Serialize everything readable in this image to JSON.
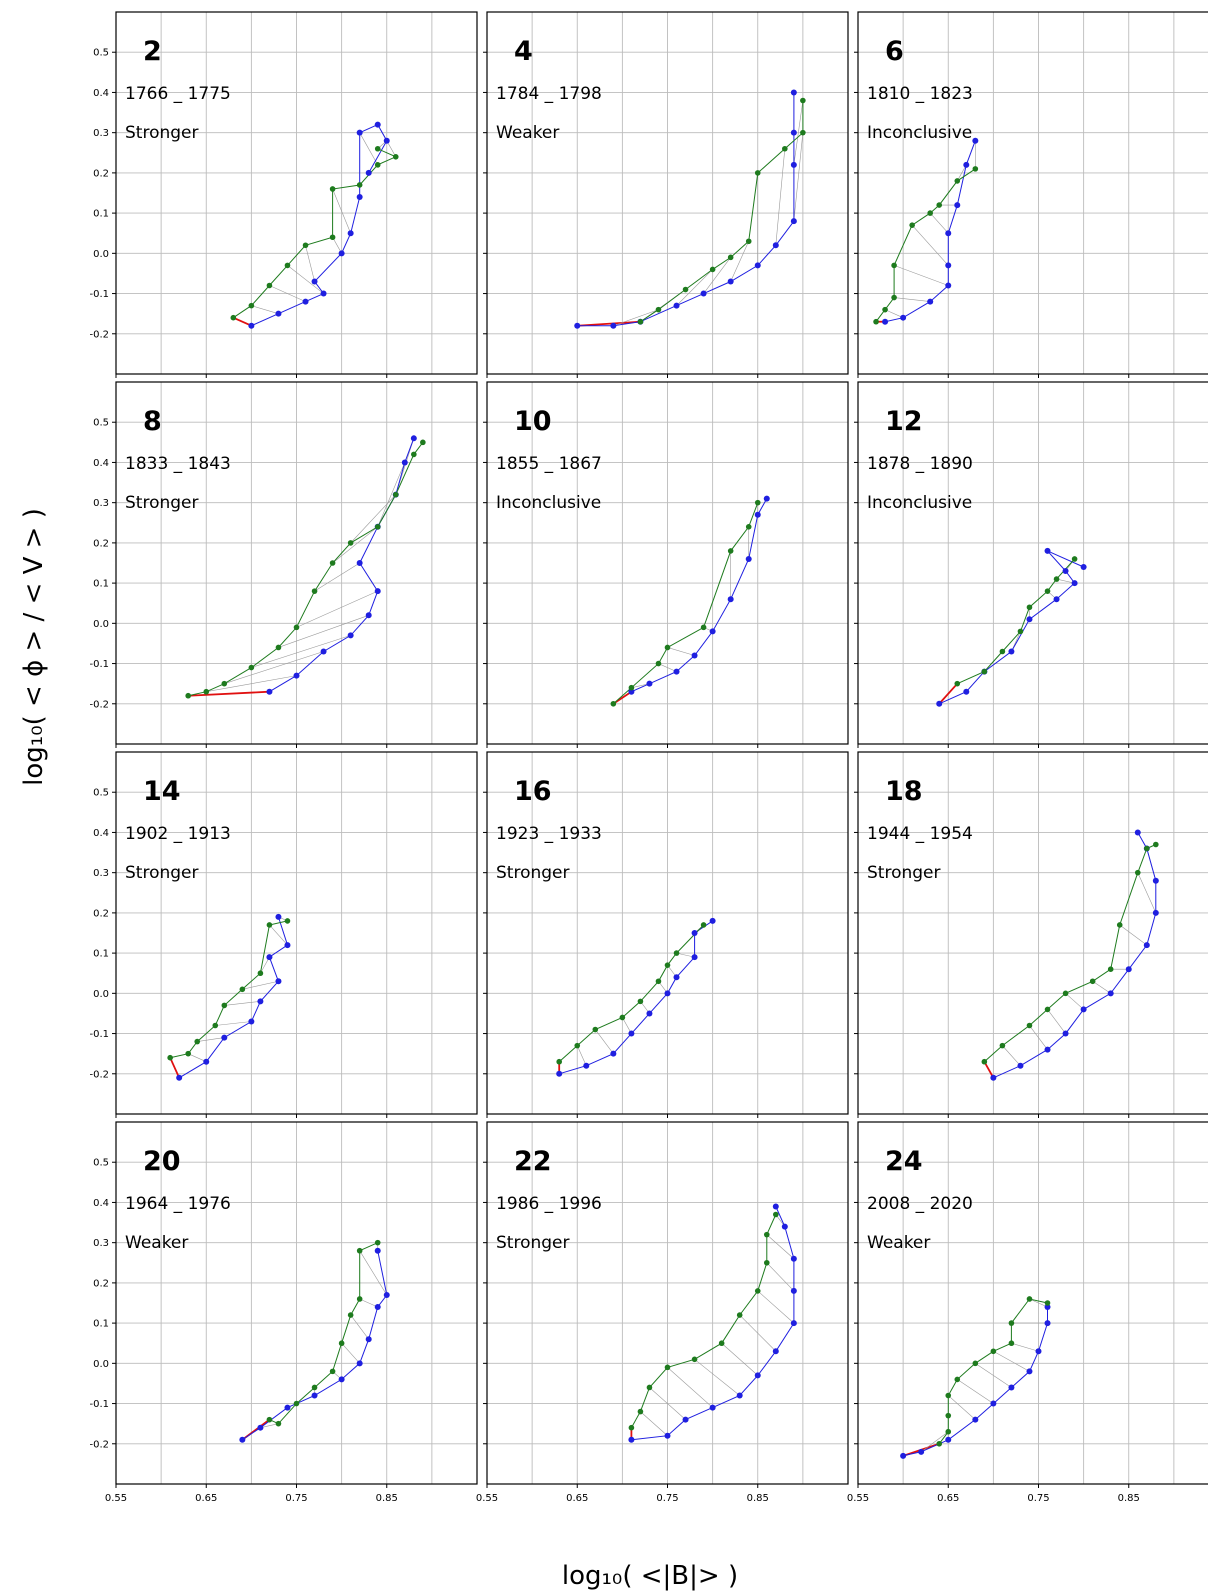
{
  "chart_data": {
    "type": "scatter",
    "xlabel": "log₁₀( <|B|> )",
    "ylabel": "log₁₀( < ϕ > / < V > )",
    "xlim": [
      0.55,
      0.95
    ],
    "ylim": [
      -0.3,
      0.6
    ],
    "x_ticks": [
      "0.55",
      "0.65",
      "0.75",
      "0.85"
    ],
    "y_ticks": [
      "-0.2",
      "-0.1",
      "0.0",
      "0.1",
      "0.2",
      "0.3",
      "0.4",
      "0.5"
    ],
    "grid": true,
    "colors": {
      "blue_series": "#1f1fe0",
      "green_series": "#1e7b1e",
      "connector": "#9a9a9a",
      "min_connector": "#e01010"
    },
    "panels": [
      {
        "cycle": "2",
        "years": "1766 _ 1775",
        "result": "Stronger",
        "green": [
          [
            0.68,
            -0.16
          ],
          [
            0.7,
            -0.13
          ],
          [
            0.72,
            -0.08
          ],
          [
            0.74,
            -0.03
          ],
          [
            0.76,
            0.02
          ],
          [
            0.79,
            0.04
          ],
          [
            0.79,
            0.16
          ],
          [
            0.82,
            0.17
          ],
          [
            0.84,
            0.22
          ],
          [
            0.86,
            0.24
          ],
          [
            0.84,
            0.26
          ]
        ],
        "blue": [
          [
            0.7,
            -0.18
          ],
          [
            0.73,
            -0.15
          ],
          [
            0.76,
            -0.12
          ],
          [
            0.78,
            -0.1
          ],
          [
            0.77,
            -0.07
          ],
          [
            0.8,
            0.0
          ],
          [
            0.81,
            0.05
          ],
          [
            0.82,
            0.14
          ],
          [
            0.82,
            0.3
          ],
          [
            0.84,
            0.32
          ],
          [
            0.85,
            0.28
          ],
          [
            0.83,
            0.2
          ]
        ]
      },
      {
        "cycle": "4",
        "years": "1784 _ 1798",
        "result": "Weaker",
        "green": [
          [
            0.72,
            -0.17
          ],
          [
            0.74,
            -0.14
          ],
          [
            0.77,
            -0.09
          ],
          [
            0.8,
            -0.04
          ],
          [
            0.82,
            -0.01
          ],
          [
            0.84,
            0.03
          ],
          [
            0.85,
            0.2
          ],
          [
            0.88,
            0.26
          ],
          [
            0.9,
            0.3
          ],
          [
            0.9,
            0.38
          ]
        ],
        "blue": [
          [
            0.65,
            -0.18
          ],
          [
            0.69,
            -0.18
          ],
          [
            0.72,
            -0.17
          ],
          [
            0.76,
            -0.13
          ],
          [
            0.79,
            -0.1
          ],
          [
            0.82,
            -0.07
          ],
          [
            0.85,
            -0.03
          ],
          [
            0.87,
            0.02
          ],
          [
            0.89,
            0.08
          ],
          [
            0.89,
            0.22
          ],
          [
            0.89,
            0.3
          ],
          [
            0.89,
            0.4
          ]
        ]
      },
      {
        "cycle": "6",
        "years": "1810 _ 1823",
        "result": "Inconclusive",
        "green": [
          [
            0.57,
            -0.17
          ],
          [
            0.58,
            -0.14
          ],
          [
            0.59,
            -0.11
          ],
          [
            0.59,
            -0.03
          ],
          [
            0.61,
            0.07
          ],
          [
            0.63,
            0.1
          ],
          [
            0.64,
            0.12
          ],
          [
            0.66,
            0.18
          ],
          [
            0.68,
            0.21
          ]
        ],
        "blue": [
          [
            0.58,
            -0.17
          ],
          [
            0.6,
            -0.16
          ],
          [
            0.63,
            -0.12
          ],
          [
            0.65,
            -0.08
          ],
          [
            0.65,
            -0.03
          ],
          [
            0.65,
            0.05
          ],
          [
            0.66,
            0.12
          ],
          [
            0.67,
            0.22
          ],
          [
            0.68,
            0.28
          ]
        ]
      },
      {
        "cycle": "8",
        "years": "1833 _ 1843",
        "result": "Stronger",
        "green": [
          [
            0.63,
            -0.18
          ],
          [
            0.65,
            -0.17
          ],
          [
            0.67,
            -0.15
          ],
          [
            0.7,
            -0.11
          ],
          [
            0.73,
            -0.06
          ],
          [
            0.75,
            -0.01
          ],
          [
            0.77,
            0.08
          ],
          [
            0.79,
            0.15
          ],
          [
            0.81,
            0.2
          ],
          [
            0.84,
            0.24
          ],
          [
            0.86,
            0.32
          ],
          [
            0.88,
            0.42
          ],
          [
            0.89,
            0.45
          ]
        ],
        "blue": [
          [
            0.72,
            -0.17
          ],
          [
            0.75,
            -0.13
          ],
          [
            0.78,
            -0.07
          ],
          [
            0.81,
            -0.03
          ],
          [
            0.83,
            0.02
          ],
          [
            0.84,
            0.08
          ],
          [
            0.82,
            0.15
          ],
          [
            0.84,
            0.24
          ],
          [
            0.86,
            0.32
          ],
          [
            0.87,
            0.4
          ],
          [
            0.88,
            0.46
          ]
        ]
      },
      {
        "cycle": "10",
        "years": "1855 _ 1867",
        "result": "Inconclusive",
        "green": [
          [
            0.69,
            -0.2
          ],
          [
            0.71,
            -0.16
          ],
          [
            0.74,
            -0.1
          ],
          [
            0.75,
            -0.06
          ],
          [
            0.79,
            -0.01
          ],
          [
            0.82,
            0.18
          ],
          [
            0.84,
            0.24
          ],
          [
            0.85,
            0.3
          ]
        ],
        "blue": [
          [
            0.71,
            -0.17
          ],
          [
            0.73,
            -0.15
          ],
          [
            0.76,
            -0.12
          ],
          [
            0.78,
            -0.08
          ],
          [
            0.8,
            -0.02
          ],
          [
            0.82,
            0.06
          ],
          [
            0.84,
            0.16
          ],
          [
            0.85,
            0.27
          ],
          [
            0.86,
            0.31
          ]
        ]
      },
      {
        "cycle": "12",
        "years": "1878 _ 1890",
        "result": "Inconclusive",
        "green": [
          [
            0.66,
            -0.15
          ],
          [
            0.69,
            -0.12
          ],
          [
            0.71,
            -0.07
          ],
          [
            0.73,
            -0.02
          ],
          [
            0.74,
            0.04
          ],
          [
            0.76,
            0.08
          ],
          [
            0.77,
            0.11
          ],
          [
            0.79,
            0.16
          ]
        ],
        "blue": [
          [
            0.64,
            -0.2
          ],
          [
            0.67,
            -0.17
          ],
          [
            0.69,
            -0.12
          ],
          [
            0.72,
            -0.07
          ],
          [
            0.74,
            0.01
          ],
          [
            0.77,
            0.06
          ],
          [
            0.79,
            0.1
          ],
          [
            0.78,
            0.13
          ],
          [
            0.76,
            0.18
          ],
          [
            0.8,
            0.14
          ]
        ]
      },
      {
        "cycle": "14",
        "years": "1902 _ 1913",
        "result": "Stronger",
        "green": [
          [
            0.61,
            -0.16
          ],
          [
            0.63,
            -0.15
          ],
          [
            0.64,
            -0.12
          ],
          [
            0.66,
            -0.08
          ],
          [
            0.67,
            -0.03
          ],
          [
            0.69,
            0.01
          ],
          [
            0.71,
            0.05
          ],
          [
            0.72,
            0.17
          ],
          [
            0.74,
            0.18
          ]
        ],
        "blue": [
          [
            0.62,
            -0.21
          ],
          [
            0.65,
            -0.17
          ],
          [
            0.67,
            -0.11
          ],
          [
            0.7,
            -0.07
          ],
          [
            0.71,
            -0.02
          ],
          [
            0.73,
            0.03
          ],
          [
            0.72,
            0.09
          ],
          [
            0.74,
            0.12
          ],
          [
            0.73,
            0.19
          ]
        ]
      },
      {
        "cycle": "16",
        "years": "1923 _ 1933",
        "result": "Stronger",
        "green": [
          [
            0.63,
            -0.17
          ],
          [
            0.65,
            -0.13
          ],
          [
            0.67,
            -0.09
          ],
          [
            0.7,
            -0.06
          ],
          [
            0.72,
            -0.02
          ],
          [
            0.74,
            0.03
          ],
          [
            0.75,
            0.07
          ],
          [
            0.76,
            0.1
          ],
          [
            0.79,
            0.17
          ]
        ],
        "blue": [
          [
            0.63,
            -0.2
          ],
          [
            0.66,
            -0.18
          ],
          [
            0.69,
            -0.15
          ],
          [
            0.71,
            -0.1
          ],
          [
            0.73,
            -0.05
          ],
          [
            0.75,
            0.0
          ],
          [
            0.76,
            0.04
          ],
          [
            0.78,
            0.09
          ],
          [
            0.78,
            0.15
          ],
          [
            0.8,
            0.18
          ]
        ]
      },
      {
        "cycle": "18",
        "years": "1944 _ 1954",
        "result": "Stronger",
        "green": [
          [
            0.69,
            -0.17
          ],
          [
            0.71,
            -0.13
          ],
          [
            0.74,
            -0.08
          ],
          [
            0.76,
            -0.04
          ],
          [
            0.78,
            0.0
          ],
          [
            0.81,
            0.03
          ],
          [
            0.83,
            0.06
          ],
          [
            0.84,
            0.17
          ],
          [
            0.86,
            0.3
          ],
          [
            0.87,
            0.36
          ],
          [
            0.88,
            0.37
          ]
        ],
        "blue": [
          [
            0.7,
            -0.21
          ],
          [
            0.73,
            -0.18
          ],
          [
            0.76,
            -0.14
          ],
          [
            0.78,
            -0.1
          ],
          [
            0.8,
            -0.04
          ],
          [
            0.83,
            0.0
          ],
          [
            0.85,
            0.06
          ],
          [
            0.87,
            0.12
          ],
          [
            0.88,
            0.2
          ],
          [
            0.88,
            0.28
          ],
          [
            0.87,
            0.36
          ],
          [
            0.86,
            0.4
          ]
        ]
      },
      {
        "cycle": "20",
        "years": "1964 _ 1976",
        "result": "Weaker",
        "green": [
          [
            0.72,
            -0.14
          ],
          [
            0.73,
            -0.15
          ],
          [
            0.75,
            -0.1
          ],
          [
            0.77,
            -0.06
          ],
          [
            0.79,
            -0.02
          ],
          [
            0.8,
            0.05
          ],
          [
            0.81,
            0.12
          ],
          [
            0.82,
            0.16
          ],
          [
            0.82,
            0.28
          ],
          [
            0.84,
            0.3
          ]
        ],
        "blue": [
          [
            0.69,
            -0.19
          ],
          [
            0.71,
            -0.16
          ],
          [
            0.74,
            -0.11
          ],
          [
            0.77,
            -0.08
          ],
          [
            0.8,
            -0.04
          ],
          [
            0.82,
            0.0
          ],
          [
            0.83,
            0.06
          ],
          [
            0.84,
            0.14
          ],
          [
            0.85,
            0.17
          ],
          [
            0.84,
            0.28
          ]
        ]
      },
      {
        "cycle": "22",
        "years": "1986 _ 1996",
        "result": "Stronger",
        "green": [
          [
            0.71,
            -0.16
          ],
          [
            0.72,
            -0.12
          ],
          [
            0.73,
            -0.06
          ],
          [
            0.75,
            -0.01
          ],
          [
            0.78,
            0.01
          ],
          [
            0.81,
            0.05
          ],
          [
            0.83,
            0.12
          ],
          [
            0.85,
            0.18
          ],
          [
            0.86,
            0.25
          ],
          [
            0.86,
            0.32
          ],
          [
            0.87,
            0.37
          ]
        ],
        "blue": [
          [
            0.71,
            -0.19
          ],
          [
            0.75,
            -0.18
          ],
          [
            0.77,
            -0.14
          ],
          [
            0.8,
            -0.11
          ],
          [
            0.83,
            -0.08
          ],
          [
            0.85,
            -0.03
          ],
          [
            0.87,
            0.03
          ],
          [
            0.89,
            0.1
          ],
          [
            0.89,
            0.18
          ],
          [
            0.89,
            0.26
          ],
          [
            0.88,
            0.34
          ],
          [
            0.87,
            0.39
          ]
        ]
      },
      {
        "cycle": "24",
        "years": "2008 _ 2020",
        "result": "Weaker",
        "green": [
          [
            0.64,
            -0.2
          ],
          [
            0.65,
            -0.17
          ],
          [
            0.65,
            -0.13
          ],
          [
            0.65,
            -0.08
          ],
          [
            0.66,
            -0.04
          ],
          [
            0.68,
            0.0
          ],
          [
            0.7,
            0.03
          ],
          [
            0.72,
            0.05
          ],
          [
            0.72,
            0.1
          ],
          [
            0.74,
            0.16
          ],
          [
            0.76,
            0.15
          ]
        ],
        "blue": [
          [
            0.6,
            -0.23
          ],
          [
            0.62,
            -0.22
          ],
          [
            0.65,
            -0.19
          ],
          [
            0.68,
            -0.14
          ],
          [
            0.7,
            -0.1
          ],
          [
            0.72,
            -0.06
          ],
          [
            0.74,
            -0.02
          ],
          [
            0.75,
            0.03
          ],
          [
            0.76,
            0.1
          ],
          [
            0.76,
            0.14
          ]
        ]
      }
    ]
  }
}
